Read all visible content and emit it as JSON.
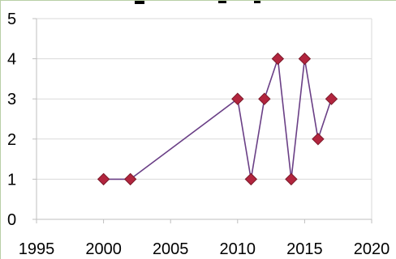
{
  "chart_data": {
    "type": "line",
    "title": "",
    "xlabel": "",
    "ylabel": "",
    "xlim": [
      1995,
      2020
    ],
    "ylim": [
      0,
      5
    ],
    "x_ticks": [
      "1995",
      "2000",
      "2005",
      "2010",
      "2015",
      "2020"
    ],
    "y_ticks": [
      "0",
      "1",
      "2",
      "3",
      "4",
      "5"
    ],
    "grid": "horizontal",
    "legend": "none",
    "series": [
      {
        "x": [
          2000,
          2002,
          2010,
          2011,
          2012,
          2013,
          2014,
          2015,
          2016,
          2017
        ],
        "y": [
          1,
          1,
          3,
          1,
          3,
          4,
          1,
          4,
          2,
          3
        ]
      }
    ],
    "colors": {
      "line": "#6a3f86",
      "marker_fill": "#b2253e",
      "marker_edge": "#7a1a2a",
      "grid": "#d9d9d9",
      "axis": "#bfbfbf"
    }
  }
}
